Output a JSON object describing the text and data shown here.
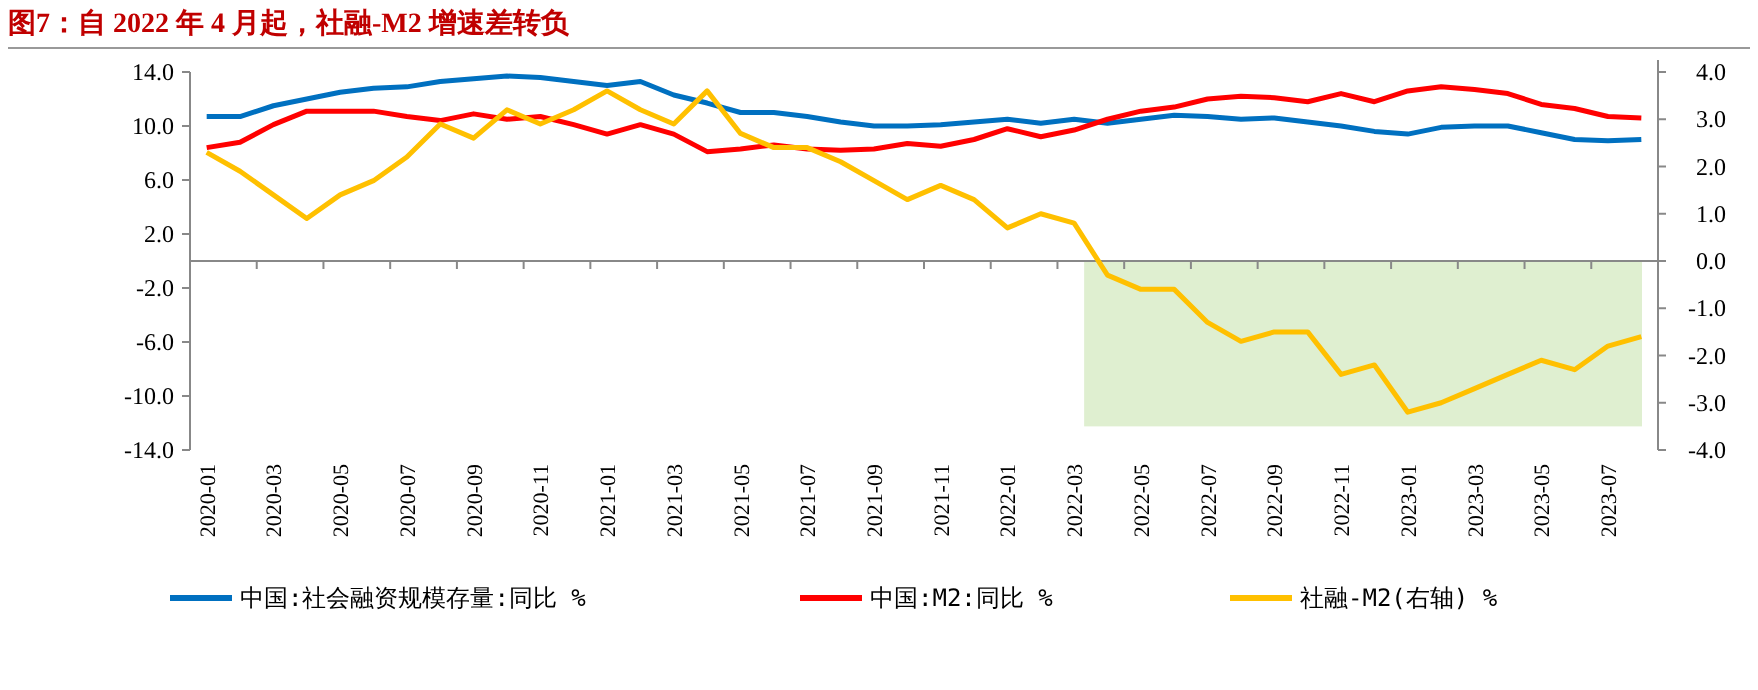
{
  "chart_data": {
    "type": "line",
    "title": "图7：自 2022 年 4 月起，社融-M2 增速差转负",
    "categories": [
      "2020-01",
      null,
      "2020-03",
      null,
      "2020-05",
      null,
      "2020-07",
      null,
      "2020-09",
      null,
      "2020-11",
      null,
      "2021-01",
      null,
      "2021-03",
      null,
      "2021-05",
      null,
      "2021-07",
      null,
      "2021-09",
      null,
      "2021-11",
      null,
      "2022-01",
      null,
      "2022-03",
      null,
      "2022-05",
      null,
      "2022-07",
      null,
      "2022-09",
      null,
      "2022-11",
      null,
      "2023-01",
      null,
      "2023-03",
      null,
      "2023-05",
      null,
      "2023-07",
      null
    ],
    "series": [
      {
        "name": "中国:社会融资规模存量:同比 %",
        "color": "#0070c0",
        "values": [
          10.7,
          10.7,
          11.5,
          12.0,
          12.5,
          12.8,
          12.9,
          13.3,
          13.5,
          13.7,
          13.6,
          13.3,
          13.0,
          13.3,
          12.3,
          11.7,
          11.0,
          11.0,
          10.7,
          10.3,
          10.0,
          10.0,
          10.1,
          10.3,
          10.5,
          10.2,
          10.5,
          10.2,
          10.5,
          10.8,
          10.7,
          10.5,
          10.6,
          10.3,
          10.0,
          9.6,
          9.4,
          9.9,
          10.0,
          10.0,
          9.5,
          9.0,
          8.9,
          9.0
        ]
      },
      {
        "name": "中国:M2:同比 %",
        "color": "#ff0000",
        "values": [
          8.4,
          8.8,
          10.1,
          11.1,
          11.1,
          11.1,
          10.7,
          10.4,
          10.9,
          10.5,
          10.7,
          10.1,
          9.4,
          10.1,
          9.4,
          8.1,
          8.3,
          8.6,
          8.3,
          8.2,
          8.3,
          8.7,
          8.5,
          9.0,
          9.8,
          9.2,
          9.7,
          10.5,
          11.1,
          11.4,
          12.0,
          12.2,
          12.1,
          11.8,
          12.4,
          11.8,
          12.6,
          12.9,
          12.7,
          12.4,
          11.6,
          11.3,
          10.7,
          10.6
        ]
      },
      {
        "name": "社融-M2(右轴)  %",
        "color": "#ffc000",
        "axis": "y2",
        "values": [
          2.3,
          1.9,
          1.4,
          0.9,
          1.4,
          1.7,
          2.2,
          2.9,
          2.6,
          3.2,
          2.9,
          3.2,
          3.6,
          3.2,
          2.9,
          3.6,
          2.7,
          2.4,
          2.4,
          2.1,
          1.7,
          1.3,
          1.6,
          1.3,
          0.7,
          1.0,
          0.8,
          -0.3,
          -0.6,
          -0.6,
          -1.3,
          -1.7,
          -1.5,
          -1.5,
          -2.4,
          -2.2,
          -3.2,
          -3.0,
          -2.7,
          -2.4,
          -2.1,
          -2.3,
          -1.8,
          -1.6
        ]
      }
    ],
    "ylim": [
      -14,
      14
    ],
    "yticks": [
      {
        "value": -14,
        "label": "-14.0"
      },
      {
        "value": -10,
        "label": "-10.0"
      },
      {
        "value": -6,
        "label": "-6.0"
      },
      {
        "value": -2,
        "label": "-2.0"
      },
      {
        "value": 2,
        "label": "2.0"
      },
      {
        "value": 6,
        "label": "6.0"
      },
      {
        "value": 10,
        "label": "10.0"
      },
      {
        "value": 14,
        "label": "14.0"
      }
    ],
    "y2lim": [
      -4,
      4
    ],
    "y2ticks": [
      {
        "value": -4,
        "label": "-4.0"
      },
      {
        "value": -3,
        "label": "-3.0"
      },
      {
        "value": -2,
        "label": "-2.0"
      },
      {
        "value": -1,
        "label": "-1.0"
      },
      {
        "value": 0,
        "label": "0.0"
      },
      {
        "value": 1,
        "label": "1.0"
      },
      {
        "value": 2,
        "label": "2.0"
      },
      {
        "value": 3,
        "label": "3.0"
      },
      {
        "value": 4,
        "label": "4.0"
      }
    ],
    "bands": [
      {
        "axis": "y2",
        "from": -3.5,
        "to": 0,
        "color": "#dfefd0"
      }
    ],
    "marker": "none",
    "line_style": "solid",
    "legend": "bottom"
  }
}
